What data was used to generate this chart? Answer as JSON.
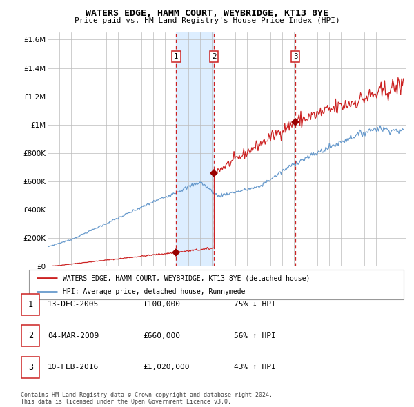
{
  "title": "WATERS EDGE, HAMM COURT, WEYBRIDGE, KT13 8YE",
  "subtitle": "Price paid vs. HM Land Registry's House Price Index (HPI)",
  "legend_line1": "WATERS EDGE, HAMM COURT, WEYBRIDGE, KT13 8YE (detached house)",
  "legend_line2": "HPI: Average price, detached house, Runnymede",
  "transactions": [
    {
      "num": 1,
      "price": 100000,
      "x_year": 2005.95
    },
    {
      "num": 2,
      "price": 660000,
      "x_year": 2009.17
    },
    {
      "num": 3,
      "price": 1020000,
      "x_year": 2016.11
    }
  ],
  "table_rows": [
    {
      "num": 1,
      "date_str": "13-DEC-2005",
      "price_str": "£100,000",
      "pct_str": "75% ↓ HPI"
    },
    {
      "num": 2,
      "date_str": "04-MAR-2009",
      "price_str": "£660,000",
      "pct_str": "56% ↑ HPI"
    },
    {
      "num": 3,
      "date_str": "10-FEB-2016",
      "price_str": "£1,020,000",
      "pct_str": "43% ↑ HPI"
    }
  ],
  "footer": "Contains HM Land Registry data © Crown copyright and database right 2024.\nThis data is licensed under the Open Government Licence v3.0.",
  "hpi_color": "#6699cc",
  "price_color": "#cc2222",
  "marker_color": "#990000",
  "shade_color": "#ddeeff",
  "grid_color": "#bbbbbb",
  "ylim": [
    0,
    1650000
  ],
  "xlim_start": 1995.0,
  "xlim_end": 2025.5,
  "yticks": [
    0,
    200000,
    400000,
    600000,
    800000,
    1000000,
    1200000,
    1400000,
    1600000
  ],
  "ylabels": [
    "£0",
    "£200K",
    "£400K",
    "£600K",
    "£800K",
    "£1M",
    "£1.2M",
    "£1.4M",
    "£1.6M"
  ]
}
